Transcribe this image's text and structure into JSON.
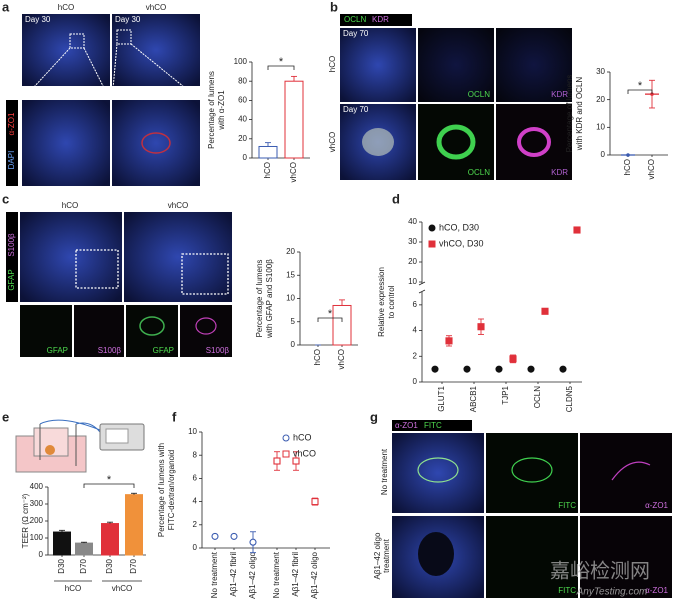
{
  "panel_letters": [
    "a",
    "b",
    "c",
    "d",
    "e",
    "f",
    "g"
  ],
  "image_labels": {
    "a": {
      "columns": [
        "hCO",
        "vhCO"
      ],
      "day": [
        "Day 30",
        "Day 30"
      ],
      "stain": [
        "DAPI",
        "α-ZO1"
      ]
    },
    "b": {
      "stain": [
        "OCLN",
        "KDR"
      ],
      "rows": [
        "hCO",
        "vhCO"
      ],
      "day": [
        "Day 70",
        "Day 70"
      ],
      "channels": [
        "OCLN",
        "KDR",
        "OCLN",
        "KDR"
      ]
    },
    "c": {
      "columns": [
        "hCO",
        "vhCO"
      ],
      "stain": [
        "GFAP",
        "S100β"
      ],
      "channels": [
        "GFAP",
        "S100β",
        "GFAP",
        "S100β"
      ]
    },
    "g": {
      "stain": [
        "α-ZO1",
        "FITC"
      ],
      "rows": [
        "No treatment",
        [
          "Aβ1–42 oligo",
          "treatment"
        ]
      ],
      "channels": [
        "FITC",
        "α-ZO1",
        "FITC",
        "α-ZO1"
      ]
    }
  },
  "watermark": [
    "嘉峪检测网",
    "AnyTesting.com"
  ],
  "chart_data": [
    {
      "type": "bar",
      "ylabel": [
        "Percentage of lumens",
        "with α-ZO1"
      ],
      "categories": [
        "hCO",
        "vhCO"
      ],
      "values": [
        12,
        80
      ],
      "errors": [
        4,
        5
      ],
      "colors": [
        "#3a5bb0",
        "#e0303a"
      ],
      "filled": false,
      "ylim": [
        0,
        100
      ],
      "yticks": [
        0,
        20,
        40,
        60,
        80,
        100
      ],
      "annotation": "*"
    },
    {
      "type": "dot",
      "ylabel": [
        "Percentage of lumens",
        "with KDR and OCLN"
      ],
      "categories": [
        "hCO",
        "vhCO"
      ],
      "values": [
        0,
        22
      ],
      "errors": [
        0,
        5
      ],
      "colors": [
        "#3a5bb0",
        "#e0303a"
      ],
      "ylim": [
        0,
        30
      ],
      "yticks": [
        0,
        10,
        20,
        30
      ],
      "annotation": "*"
    },
    {
      "type": "bar",
      "ylabel": [
        "Percentage of lumens",
        "with GFAP and S100β"
      ],
      "categories": [
        "hCO",
        "vhCO"
      ],
      "values": [
        0,
        8.5
      ],
      "errors": [
        0,
        1.2
      ],
      "colors": [
        "#3a5bb0",
        "#e0303a"
      ],
      "filled": false,
      "ylim": [
        0,
        20
      ],
      "yticks": [
        0,
        5,
        10,
        15,
        20
      ],
      "annotation": "*"
    },
    {
      "type": "scatter",
      "ylabel": [
        "Relative expression",
        "to control"
      ],
      "categories": [
        "GLUT1",
        "ABCB1",
        "TJP1",
        "OCLN",
        "CLDN5"
      ],
      "series": [
        {
          "name": "hCO, D30",
          "color": "#111111",
          "marker": "circle",
          "filled": true,
          "values": [
            1,
            1,
            1,
            1,
            1
          ],
          "errors": [
            0.1,
            0.1,
            0.1,
            0.1,
            0.1
          ]
        },
        {
          "name": "vhCO, D30",
          "color": "#e0303a",
          "marker": "square",
          "filled": true,
          "values": [
            3.2,
            4.3,
            1.8,
            5.5,
            36
          ],
          "errors": [
            0.4,
            0.6,
            0.3,
            0.2,
            0.5
          ]
        }
      ],
      "ylim": [
        0,
        40
      ],
      "ybreak": [
        7,
        9
      ],
      "yticks": [
        0,
        2,
        4,
        6,
        10,
        20,
        30,
        40
      ],
      "legend": "upper left"
    },
    {
      "type": "bar",
      "ylabel": [
        "TEER (Ω cm⁻²)"
      ],
      "categories": [
        "D30",
        "D70",
        "D30",
        "D70"
      ],
      "groups": [
        "hCO",
        "vhCO"
      ],
      "values": [
        135,
        70,
        185,
        355
      ],
      "errors": [
        10,
        5,
        8,
        8
      ],
      "colors": [
        "#111111",
        "#888888",
        "#e0303a",
        "#f0913a"
      ],
      "filled": true,
      "ylim": [
        0,
        400
      ],
      "yticks": [
        0,
        100,
        200,
        300,
        400
      ],
      "annotation": "*"
    },
    {
      "type": "scatter",
      "ylabel": [
        "Percentage of lumens with",
        "FITC-dextran/organoid"
      ],
      "categories": [
        "No treatment",
        "Aβ1–42 fibril",
        "Aβ1–42 oligo",
        "No treatment",
        "Aβ1–42 fibril",
        "Aβ1–42 oligo"
      ],
      "series": [
        {
          "name": "hCO",
          "color": "#3a5bb0",
          "marker": "circle",
          "filled": false,
          "values": [
            1,
            1,
            0.5,
            null,
            null,
            null
          ],
          "errors": [
            0.1,
            0.1,
            0.9,
            null,
            null,
            null
          ]
        },
        {
          "name": "vhCO",
          "color": "#e0303a",
          "marker": "square",
          "filled": false,
          "values": [
            null,
            null,
            null,
            7.5,
            7.5,
            4
          ],
          "errors": [
            null,
            null,
            null,
            0.8,
            0.8,
            0.3
          ]
        }
      ],
      "ylim": [
        0,
        10
      ],
      "yticks": [
        0,
        2,
        4,
        6,
        8,
        10
      ],
      "legend": "upper right"
    }
  ]
}
